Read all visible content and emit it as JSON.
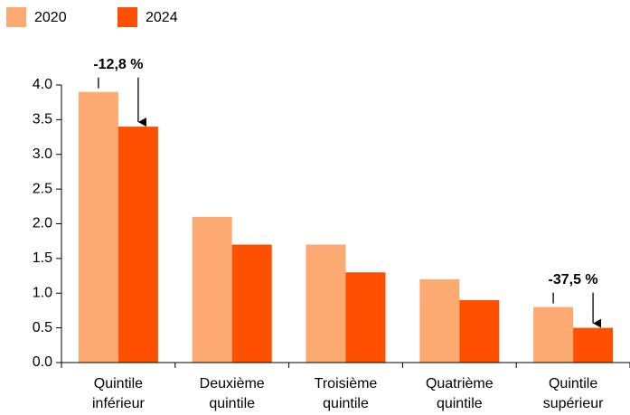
{
  "chart_data": {
    "type": "bar",
    "categories": [
      "Quintile inférieur",
      "Deuxième quintile",
      "Troisième quintile",
      "Quatrième quintile",
      "Quintile supérieur"
    ],
    "series": [
      {
        "name": "2020",
        "color": "#fdaa72",
        "values": [
          3.9,
          2.1,
          1.7,
          1.2,
          0.8
        ]
      },
      {
        "name": "2024",
        "color": "#fe5000",
        "values": [
          3.4,
          1.7,
          1.3,
          0.9,
          0.5
        ]
      }
    ],
    "ylim": [
      0,
      4
    ],
    "yticks": [
      {
        "value": 0,
        "label": "0.0"
      },
      {
        "value": 0.5,
        "label": "0.5"
      },
      {
        "value": 1,
        "label": "1.0"
      },
      {
        "value": 1.5,
        "label": "1.5"
      },
      {
        "value": 2,
        "label": "2.0"
      },
      {
        "value": 2.5,
        "label": "2.5"
      },
      {
        "value": 3,
        "label": "3.0"
      },
      {
        "value": 3.5,
        "label": "3.5"
      },
      {
        "value": 4,
        "label": "4.0"
      }
    ],
    "grid": false,
    "legend": "top-left",
    "annotations": [
      {
        "text": "-12,8 %",
        "category": "Quintile inférieur"
      },
      {
        "text": "-37,5 %",
        "category": "Quintile supérieur"
      }
    ]
  }
}
